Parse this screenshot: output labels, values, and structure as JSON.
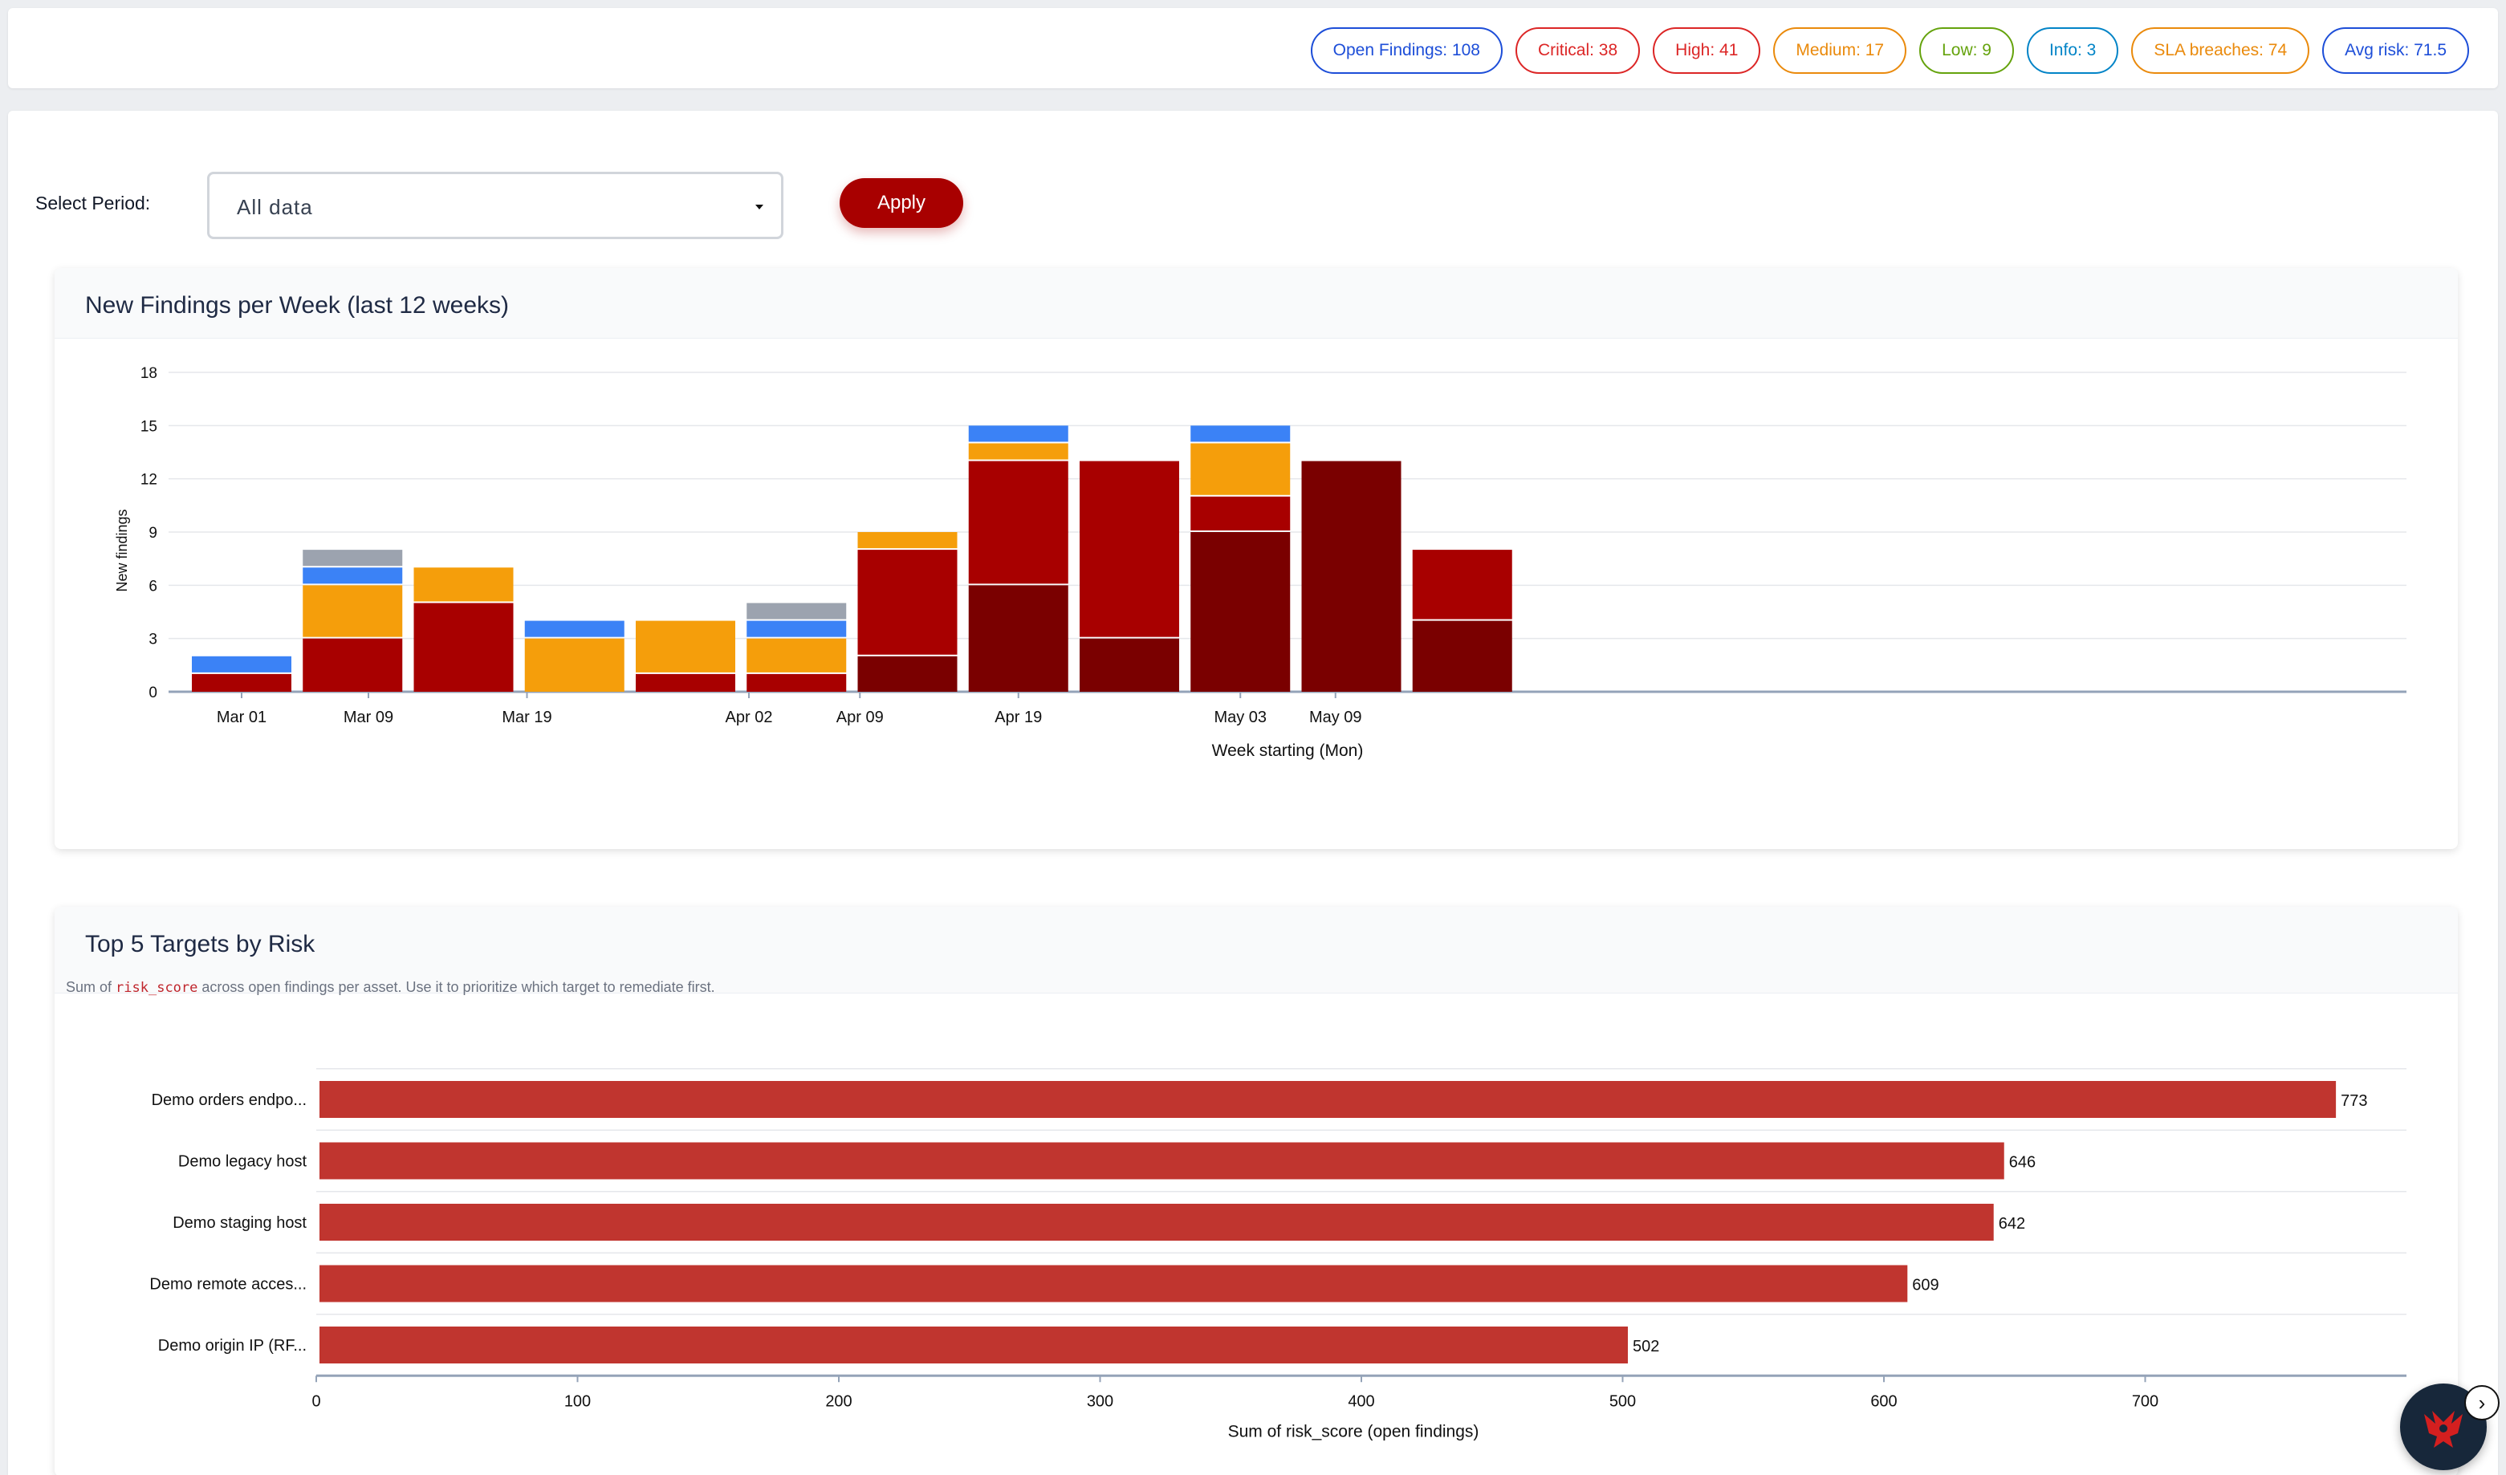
{
  "header": {
    "badges": [
      {
        "label": "Open Findings: 108",
        "color": "#1d4ed8"
      },
      {
        "label": "Critical: 38",
        "color": "#dc2626"
      },
      {
        "label": "High: 41",
        "color": "#dc2626"
      },
      {
        "label": "Medium: 17",
        "color": "#ea8a0c"
      },
      {
        "label": "Low: 9",
        "color": "#65a30d"
      },
      {
        "label": "Info: 3",
        "color": "#0284c7"
      },
      {
        "label": "SLA breaches: 74",
        "color": "#ea8a0c"
      },
      {
        "label": "Avg risk: 71.5",
        "color": "#1d4ed8"
      }
    ]
  },
  "filters": {
    "period_label": "Select Period:",
    "period_value": "All data",
    "apply_label": "Apply"
  },
  "weekly_card": {
    "title": "New Findings per Week (last 12 weeks)"
  },
  "risk_card": {
    "title": "Top 5 Targets by Risk",
    "desc_prefix": "Sum of ",
    "desc_code": "risk_score",
    "desc_suffix": " across open findings per asset. Use it to prioritize which target to remediate first."
  },
  "colors": {
    "critical": "#7a0000",
    "high": "#a80000",
    "medium": "#f59e0b",
    "low": "#3b82f6",
    "info": "#9ca3af",
    "risk_bar": "#c0352f",
    "accent": "#a80000"
  },
  "icons": {
    "logo": "red-bird-logo-icon",
    "next": "chevron-right-icon"
  },
  "chart_data": [
    {
      "type": "bar",
      "stacked": true,
      "title": "New Findings per Week (last 12 weeks)",
      "xlabel": "Week starting (Mon)",
      "ylabel": "New findings",
      "x_type": "date",
      "categories": [
        "2025-03-01",
        "2025-03-08",
        "2025-03-15",
        "2025-03-22",
        "2025-03-29",
        "2025-04-05",
        "2025-04-12",
        "2025-04-19",
        "2025-04-26",
        "2025-05-03",
        "2025-05-10",
        "2025-05-17"
      ],
      "tick_labels": [
        "Mar 01",
        "Mar 09",
        "Mar 19",
        "Apr 02",
        "Apr 09",
        "Apr 19",
        "May 03",
        "May 09"
      ],
      "tick_dates": [
        "2025-03-01",
        "2025-03-09",
        "2025-03-19",
        "2025-04-02",
        "2025-04-09",
        "2025-04-19",
        "2025-05-03",
        "2025-05-09"
      ],
      "series": [
        {
          "key": "critical",
          "values": [
            0,
            0,
            0,
            0,
            0,
            0,
            2,
            6,
            3,
            9,
            13,
            4
          ]
        },
        {
          "key": "high",
          "values": [
            1,
            3,
            5,
            0,
            1,
            1,
            6,
            7,
            10,
            2,
            0,
            4
          ]
        },
        {
          "key": "medium",
          "values": [
            0,
            3,
            2,
            3,
            3,
            2,
            1,
            1,
            0,
            3,
            0,
            0
          ]
        },
        {
          "key": "low",
          "values": [
            1,
            1,
            0,
            1,
            0,
            1,
            0,
            1,
            0,
            1,
            0,
            0
          ]
        },
        {
          "key": "info",
          "values": [
            0,
            1,
            0,
            0,
            0,
            1,
            0,
            0,
            0,
            0,
            0,
            0
          ]
        }
      ],
      "yticks": [
        0,
        3,
        6,
        9,
        12,
        15,
        18
      ],
      "ylim": [
        0,
        18
      ],
      "grid": true
    },
    {
      "type": "bar",
      "orientation": "horizontal",
      "title": "Top 5 Targets by Risk",
      "xlabel": "Sum of risk_score (open findings)",
      "categories": [
        "Demo orders endpo...",
        "Demo legacy host",
        "Demo staging host",
        "Demo remote acces...",
        "Demo origin IP (RF..."
      ],
      "values": [
        773,
        646,
        642,
        609,
        502
      ],
      "xticks": [
        0,
        100,
        200,
        300,
        400,
        500,
        600,
        700
      ],
      "xlim": [
        0,
        800
      ],
      "grid": true
    }
  ]
}
